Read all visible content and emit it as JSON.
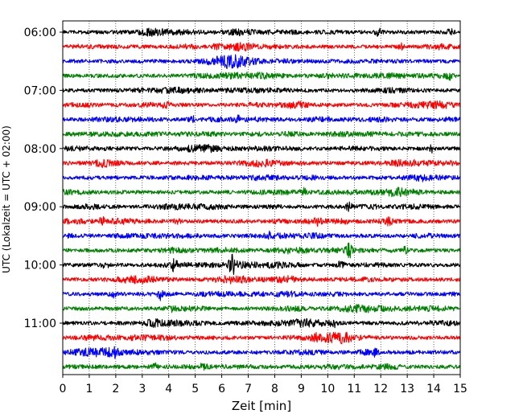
{
  "chart_data": {
    "type": "line",
    "subtype": "helicorder",
    "xlabel": "Zeit  [min]",
    "ylabel": "UTC (Lokalzeit = UTC + 02:00)",
    "xlim": [
      0,
      15
    ],
    "x_ticks": [
      "0",
      "1",
      "2",
      "3",
      "4",
      "5",
      "6",
      "7",
      "8",
      "9",
      "10",
      "11",
      "12",
      "13",
      "14",
      "15"
    ],
    "y_ticks": [
      "06:00",
      "07:00",
      "08:00",
      "09:00",
      "10:00",
      "11:00"
    ],
    "traces_per_hour": 4,
    "trace_count": 24,
    "grid": "vertical-dotted",
    "trace_colors": [
      "#000000",
      "#ff0000",
      "#0000ff",
      "#008000"
    ],
    "events": [
      {
        "trace": 0,
        "minute": 11.9,
        "amplitude": 1.6
      },
      {
        "trace": 0,
        "minute": 14.6,
        "amplitude": 1.5
      },
      {
        "trace": 1,
        "minute": 5.8,
        "amplitude": 1.2
      },
      {
        "trace": 1,
        "minute": 12.8,
        "amplitude": 1.3
      },
      {
        "trace": 3,
        "minute": 14.6,
        "amplitude": 1.4
      },
      {
        "trace": 5,
        "minute": 3.9,
        "amplitude": 1.3
      },
      {
        "trace": 6,
        "minute": 4.9,
        "amplitude": 1.6
      },
      {
        "trace": 6,
        "minute": 6.6,
        "amplitude": 1.5
      },
      {
        "trace": 8,
        "minute": 13.9,
        "amplitude": 1.6
      },
      {
        "trace": 11,
        "minute": 9.1,
        "amplitude": 1.3
      },
      {
        "trace": 12,
        "minute": 10.8,
        "amplitude": 1.8
      },
      {
        "trace": 13,
        "minute": 1.5,
        "amplitude": 1.2
      },
      {
        "trace": 13,
        "minute": 4.3,
        "amplitude": 1.2
      },
      {
        "trace": 13,
        "minute": 9.6,
        "amplitude": 1.3
      },
      {
        "trace": 13,
        "minute": 12.3,
        "amplitude": 1.2
      },
      {
        "trace": 14,
        "minute": 7.8,
        "amplitude": 1.3
      },
      {
        "trace": 15,
        "minute": 10.8,
        "amplitude": 3.2
      },
      {
        "trace": 15,
        "minute": 12.9,
        "amplitude": 1.3
      },
      {
        "trace": 16,
        "minute": 1.6,
        "amplitude": 1.5
      },
      {
        "trace": 16,
        "minute": 4.2,
        "amplitude": 2.4
      },
      {
        "trace": 16,
        "minute": 6.4,
        "amplitude": 4.5
      },
      {
        "trace": 16,
        "minute": 10.5,
        "amplitude": 1.8
      },
      {
        "trace": 18,
        "minute": 1.9,
        "amplitude": 1.4
      },
      {
        "trace": 18,
        "minute": 3.7,
        "amplitude": 2.4
      },
      {
        "trace": 19,
        "minute": 4.1,
        "amplitude": 1.2
      },
      {
        "trace": 20,
        "minute": 10.2,
        "amplitude": 1.8
      },
      {
        "trace": 21,
        "minute": 9.5,
        "amplitude": 1.3
      },
      {
        "trace": 22,
        "minute": 1.9,
        "amplitude": 2.2
      },
      {
        "trace": 22,
        "minute": 11.8,
        "amplitude": 1.6
      },
      {
        "trace": 23,
        "minute": 3.5,
        "amplitude": 1.4
      },
      {
        "trace": 23,
        "minute": 5.3,
        "amplitude": 1.3
      }
    ]
  }
}
